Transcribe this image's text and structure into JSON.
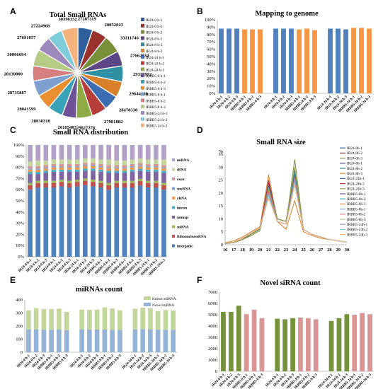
{
  "panel_labels": [
    "A",
    "B",
    "C",
    "D",
    "E",
    "F"
  ],
  "chart_data": [
    {
      "panel": "A",
      "type": "pie",
      "title": "Total Small RNAs",
      "labels": [
        "IR24-0 b-1",
        "IR24-0 b-2",
        "IR24-0 b-3",
        "IR24-8 h-1",
        "IR24-8 h-2",
        "IR24-8 h-3",
        "IR24-24 h-1",
        "IR24-24 h-2",
        "IR24-24 h-3",
        "IRBB5-0 h-1",
        "IRBB5-0 h-2",
        "IRBB5-0 h-3",
        "IRBB5-8 h-1",
        "IRBB5-8 h-2",
        "IRBB5-8 h-3",
        "IRBB5-24 h-1",
        "IRBB5-24 h-2",
        "IRBB5-24 h-3"
      ],
      "values": [
        27287119,
        28052023,
        33311746,
        27664034,
        29338952,
        29644980,
        28478338,
        27981882,
        29827376,
        26105403,
        28030310,
        28041599,
        28735887,
        28130000,
        30866694,
        27691057,
        27224968,
        30396352
      ],
      "value_labels": [
        "27287119",
        "28052023",
        "33311746",
        "27664034",
        "29338952",
        "29644980",
        "28478338",
        "27981882",
        "29827376",
        "26105403",
        "28030310",
        "28041599",
        "28735887",
        "28130000",
        "30866694",
        "27691057",
        "27224968",
        "30396352"
      ],
      "colors": [
        "#2E5F9C",
        "#9A3230",
        "#7A8F3A",
        "#5C4686",
        "#2F8FA3",
        "#D8812A",
        "#3C6CB2",
        "#B53D3A",
        "#8EAA44",
        "#6E5298",
        "#3AA2B7",
        "#E98F32",
        "#7DA0D0",
        "#D77F7E",
        "#B4CC84",
        "#9E89BC",
        "#7ECBD9",
        "#F4B37C"
      ]
    },
    {
      "panel": "B",
      "type": "bar",
      "title": "Mapping to genome",
      "categories": [
        "IR24-0 h-1",
        "IR24-0 h-2",
        "IR24-0 h-3",
        "IRBB5-0 h-1",
        "IRBB5-0 h-2",
        "IRBB5-0 h-3",
        "",
        "IR24-8 h-1",
        "IR24-8 h-2",
        "IR24-8 h-3",
        "IRBB5-8 h-1",
        "IRBB5-8 h-2",
        "IRBB5-8 h-3",
        "",
        "IR24-24 h-1",
        "IR24-24 h-2",
        "IR24-24 h-3",
        "IRBB5-24 h-1",
        "IRBB5-24 h-2",
        "IRBB5-24 h-3"
      ],
      "values": [
        88,
        88,
        88,
        87,
        87,
        87,
        null,
        88,
        88,
        88,
        87,
        88,
        86,
        null,
        88,
        88,
        87,
        89,
        89,
        88
      ],
      "colors": [
        "#4F81BD",
        "#4F81BD",
        "#4F81BD",
        "#F79646",
        "#F79646",
        "#F79646",
        "",
        "#4F81BD",
        "#4F81BD",
        "#4F81BD",
        "#F79646",
        "#F79646",
        "#F79646",
        "",
        "#4F81BD",
        "#4F81BD",
        "#4F81BD",
        "#F79646",
        "#F79646",
        "#F79646"
      ],
      "ylim": [
        0,
        100
      ],
      "ytick_labels": [
        "0%",
        "10%",
        "20%",
        "30%",
        "40%",
        "50%",
        "60%",
        "70%",
        "80%",
        "90%",
        "100%"
      ]
    },
    {
      "panel": "C",
      "type": "bar",
      "stacked": true,
      "title": "Small RNA distribution",
      "categories": [
        "IR24-0 h-1",
        "IR24-0 h-2",
        "IR24-0 h-3",
        "IR24-8 h-1",
        "IR24-8 h-2",
        "IR24-8 h-3",
        "IR24-24 h-1",
        "IR24-24 h-2",
        "IR24-24 h-3",
        "IRBB5-0 h-1",
        "IRBB5-0 h-2",
        "IRBB5-0 h-3",
        "IRBB5-8 h-1",
        "IRBB5-8 h-2",
        "IRBB5-8 h-3",
        "IRBB5-24 h-1",
        "IRBB5-24 h-2",
        "IRBB5-24 h-3"
      ],
      "series": [
        {
          "name": "intergenic",
          "color": "#4F81BD",
          "values": [
            60,
            62,
            62,
            62,
            63,
            62,
            63,
            64,
            63,
            62,
            60,
            62,
            62,
            62,
            63,
            62,
            62,
            60
          ]
        },
        {
          "name": "RibonucleaseRNA",
          "color": "#C0504D",
          "values": [
            4,
            4,
            4,
            4,
            4,
            4,
            4,
            4,
            4,
            4,
            4,
            4,
            4,
            4,
            4,
            4,
            4,
            4
          ]
        },
        {
          "name": "snRNA",
          "color": "#9BBB59",
          "values": [
            2,
            2,
            2,
            2,
            2,
            2,
            2,
            2,
            2,
            2,
            2,
            2,
            2,
            2,
            2,
            2,
            2,
            2
          ]
        },
        {
          "name": "unmap",
          "color": "#8064A2",
          "values": [
            8,
            6,
            7,
            8,
            7,
            8,
            7,
            7,
            8,
            8,
            9,
            7,
            7,
            8,
            7,
            8,
            8,
            9
          ]
        },
        {
          "name": "intron",
          "color": "#4BACC6",
          "values": [
            2,
            2,
            2,
            2,
            2,
            2,
            2,
            2,
            2,
            2,
            2,
            2,
            2,
            2,
            2,
            2,
            2,
            2
          ]
        },
        {
          "name": "rRNA",
          "color": "#F79646",
          "values": [
            2,
            2,
            2,
            2,
            2,
            2,
            2,
            2,
            2,
            2,
            2,
            2,
            2,
            2,
            2,
            2,
            2,
            2
          ]
        },
        {
          "name": "snoRNA",
          "color": "#7BA7D7",
          "values": [
            1,
            1,
            1,
            1,
            1,
            1,
            1,
            1,
            1,
            1,
            1,
            1,
            1,
            1,
            1,
            1,
            1,
            1
          ]
        },
        {
          "name": "exon",
          "color": "#D99694",
          "values": [
            2,
            2,
            2,
            2,
            2,
            2,
            2,
            2,
            2,
            2,
            2,
            2,
            2,
            2,
            2,
            2,
            2,
            2
          ]
        },
        {
          "name": "tRNA",
          "color": "#C3D69B",
          "values": [
            4,
            5,
            4,
            4,
            4,
            4,
            4,
            4,
            4,
            4,
            5,
            4,
            4,
            4,
            4,
            4,
            4,
            5
          ]
        },
        {
          "name": "miRNA",
          "color": "#B3A2C7",
          "values": [
            15,
            14,
            14,
            13,
            13,
            13,
            13,
            12,
            12,
            13,
            13,
            14,
            14,
            13,
            12,
            13,
            13,
            13
          ]
        }
      ],
      "ylim": [
        0,
        100
      ],
      "ytick_labels": [
        "0%",
        "10%",
        "20%",
        "30%",
        "40%",
        "50%",
        "60%",
        "70%",
        "80%",
        "90%",
        "100%"
      ],
      "legend_order": [
        "miRNA",
        "tRNA",
        "exon",
        "snoRNA",
        "rRNA",
        "intron",
        "unmap",
        "snRNA",
        "RibonucleaseRNA",
        "intergenic"
      ],
      "legend_position": "right"
    },
    {
      "panel": "D",
      "type": "line",
      "title": "Small RNA size",
      "ylabel": "%",
      "x": [
        16,
        17,
        18,
        19,
        20,
        21,
        22,
        23,
        24,
        25,
        26,
        27,
        28,
        29,
        30
      ],
      "ylim": [
        0,
        35
      ],
      "yticks": [
        0,
        5,
        10,
        15,
        20,
        25,
        30,
        35
      ],
      "series": [
        {
          "name": "IR24-0h-1",
          "color": "#2E5F9C",
          "values": [
            0.5,
            0.8,
            2,
            4,
            6,
            22,
            10,
            9,
            27,
            6,
            4,
            3,
            2,
            1.5,
            1
          ]
        },
        {
          "name": "IR24-0h-2",
          "color": "#9A3230",
          "values": [
            0.5,
            0.9,
            2.5,
            4,
            6,
            24,
            10,
            9,
            28,
            6,
            4,
            3,
            2,
            1.5,
            1
          ]
        },
        {
          "name": "IR24-0h-3",
          "color": "#7A8F3A",
          "values": [
            0.4,
            0.8,
            2,
            3.5,
            5.5,
            20,
            9,
            8,
            33,
            6,
            4,
            3,
            2,
            1.5,
            1
          ]
        },
        {
          "name": "IR24-8h-1",
          "color": "#5C4686",
          "values": [
            0.5,
            0.8,
            2,
            4,
            6,
            23,
            10,
            9,
            29,
            6,
            4,
            3,
            2,
            1.5,
            1
          ]
        },
        {
          "name": "IR24-8h-2",
          "color": "#2F8FA3",
          "values": [
            0.5,
            1,
            2.5,
            4,
            6.5,
            22,
            10,
            9,
            28,
            6,
            4,
            3,
            2,
            1.5,
            1
          ]
        },
        {
          "name": "IR24-8h-3",
          "color": "#D8812A",
          "values": [
            0.8,
            1.5,
            3,
            5,
            7,
            27,
            9,
            6,
            17,
            5,
            3.5,
            2.5,
            2,
            1.5,
            1
          ]
        },
        {
          "name": "IR24-24h-1",
          "color": "#3C6CB2",
          "values": [
            0.5,
            0.8,
            2,
            4,
            6,
            23,
            10,
            9,
            27,
            6,
            4,
            3,
            2,
            1.5,
            1
          ]
        },
        {
          "name": "IR24-24h-2",
          "color": "#B53D3A",
          "values": [
            0.5,
            0.9,
            2,
            4,
            6,
            25,
            10,
            9,
            26,
            6,
            4,
            3,
            2,
            1.5,
            1
          ]
        },
        {
          "name": "IR24-24h-3",
          "color": "#8EAA44",
          "values": [
            0.5,
            0.8,
            2,
            4,
            6,
            22,
            10,
            9,
            30,
            6,
            4,
            3,
            2,
            1.5,
            1
          ]
        },
        {
          "name": "IRBB5-0h-1",
          "color": "#6E5298",
          "values": [
            0.6,
            1,
            2.5,
            4.5,
            6.5,
            19,
            9,
            8,
            26,
            6,
            4,
            3,
            2,
            1.5,
            1
          ]
        },
        {
          "name": "IRBB5-0h-2",
          "color": "#3AA2B7",
          "values": [
            0.6,
            1,
            2.5,
            4.5,
            6.5,
            20,
            9,
            8,
            25,
            6,
            4,
            3,
            2,
            1.5,
            1
          ]
        },
        {
          "name": "IRBB5-0h-3",
          "color": "#E98F32",
          "values": [
            0.6,
            1,
            2.5,
            4.5,
            6.5,
            21,
            9,
            8,
            24,
            6,
            4,
            3,
            2,
            1.5,
            1
          ]
        },
        {
          "name": "IRBB5-8h-1",
          "color": "#7DA0D0",
          "values": [
            0.6,
            1,
            2.5,
            4.5,
            6.5,
            20,
            9,
            8,
            25,
            6,
            4,
            3,
            2,
            1.5,
            1
          ]
        },
        {
          "name": "IRBB5-8h-2",
          "color": "#D77F7E",
          "values": [
            0.6,
            1,
            2.5,
            4.5,
            6.5,
            21,
            9,
            8,
            26,
            6,
            4,
            3,
            2,
            1.5,
            1
          ]
        },
        {
          "name": "IRBB5-8h-3",
          "color": "#B4CC84",
          "values": [
            0.6,
            1,
            2.5,
            4.5,
            6.5,
            19,
            9,
            8,
            24,
            6,
            4,
            3,
            2,
            1.5,
            1
          ]
        },
        {
          "name": "IRBB5-24h-1",
          "color": "#9E89BC",
          "values": [
            0.6,
            1,
            2.5,
            4.5,
            6.5,
            20,
            9,
            8,
            25,
            6,
            4,
            3,
            2,
            1.5,
            1
          ]
        },
        {
          "name": "IRBB5-24h-2",
          "color": "#7ECBD9",
          "values": [
            0.6,
            1,
            2.5,
            4.5,
            6.5,
            19,
            9,
            8,
            24,
            6,
            4,
            3,
            2,
            1.5,
            1
          ]
        },
        {
          "name": "IRBB5-24h-3",
          "color": "#F4B37C",
          "values": [
            0.6,
            1,
            2.5,
            4.5,
            6.5,
            18,
            9,
            8,
            23,
            6,
            4,
            3,
            2,
            1.5,
            1
          ]
        }
      ],
      "legend_position": "right"
    },
    {
      "panel": "E",
      "type": "bar",
      "stacked": true,
      "title": "miRNAs count",
      "categories": [
        "IR24-0 h-1",
        "IR24-0 h-2",
        "IR24-0 h-3",
        "IRBB5-0 h-1",
        "IRBB5-0 h-2",
        "IRBB5-0 h-3",
        "",
        "IR24-8 h-1",
        "IR24-8 h-2",
        "IR24-8 h-3",
        "IRBB5-8 h-1",
        "IRBB5-8 h-2",
        "IRBB5-8 h-3",
        "",
        "IR24-24 h-1",
        "IR24-24 h-2",
        "IR24-24 h-3",
        "IRBB5-24 h-1",
        "IRBB5-24 h-2",
        "IRBB5-24 h-3"
      ],
      "series": [
        {
          "name": "Novel miRNA",
          "color": "#95B3D7",
          "values": [
            175,
            175,
            173,
            172,
            173,
            168,
            null,
            175,
            174,
            173,
            173,
            172,
            170,
            null,
            175,
            176,
            175,
            174,
            172,
            172
          ]
        },
        {
          "name": "Known miRNA",
          "color": "#C3D69B",
          "values": [
            145,
            162,
            158,
            158,
            160,
            140,
            null,
            150,
            150,
            153,
            170,
            162,
            150,
            null,
            158,
            164,
            160,
            140,
            150,
            147
          ]
        }
      ],
      "ylim": [
        0,
        400
      ],
      "yticks": [
        0,
        100,
        200,
        300,
        400
      ],
      "legend_order": [
        "Known miRNA",
        "Novel miRNA"
      ],
      "legend_position": "top-right"
    },
    {
      "panel": "F",
      "type": "bar",
      "title": "Novel siRNA count",
      "categories": [
        "IR24-0 h-1",
        "IR24-0 h-2",
        "IR24-0 h-3",
        "IRBB5-0 h-1",
        "IRBB5-0 h-2",
        "IRBB5-0 h-3",
        "",
        "IR24-8 h-1",
        "IR24-8 h-2",
        "IR24-8 h-3",
        "IRBB5-8 h-1",
        "IRBB5-8 h-2",
        "IRBB5-8 h-3",
        "",
        "IR24-24 h-1",
        "IR24-24 h-2",
        "IR24-24 h-3",
        "IRBB5-24 h-1",
        "IRBB5-24 h-2",
        "IRBB5-24 h-3"
      ],
      "values": [
        5250,
        5250,
        5800,
        5050,
        5450,
        4700,
        null,
        4650,
        4600,
        4700,
        4750,
        4700,
        4600,
        null,
        4450,
        4700,
        5050,
        5000,
        5150,
        5050
      ],
      "colors": [
        "#76923C",
        "#76923C",
        "#76923C",
        "#D99694",
        "#D99694",
        "#D99694",
        "",
        "#76923C",
        "#76923C",
        "#76923C",
        "#D99694",
        "#D99694",
        "#D99694",
        "",
        "#76923C",
        "#76923C",
        "#76923C",
        "#D99694",
        "#D99694",
        "#D99694"
      ],
      "ylim": [
        0,
        7000
      ],
      "yticks": [
        0,
        1000,
        2000,
        3000,
        4000,
        5000,
        6000,
        7000
      ]
    }
  ]
}
